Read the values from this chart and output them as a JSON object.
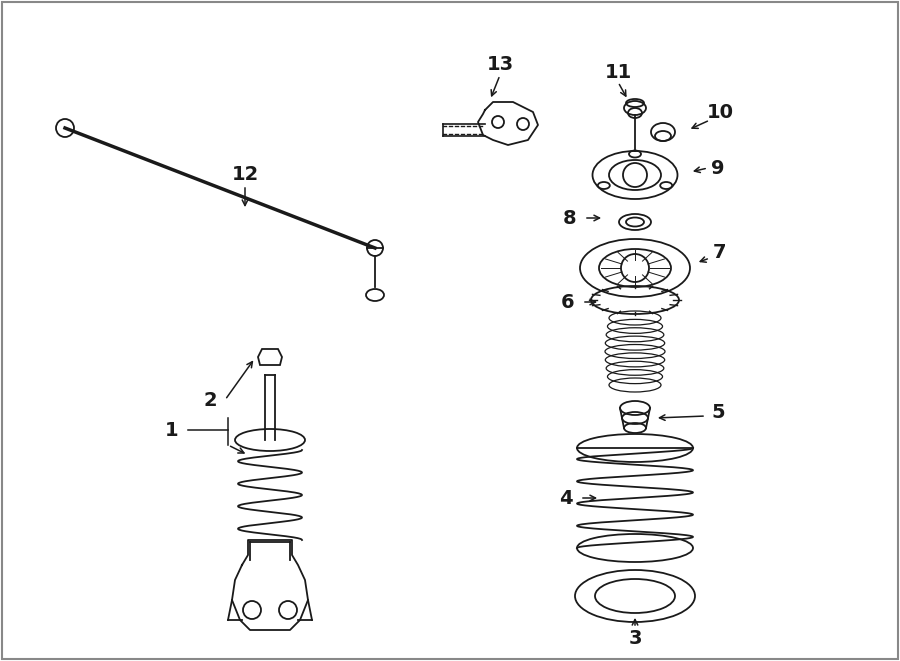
{
  "bg_color": "#ffffff",
  "line_color": "#1a1a1a",
  "fig_width": 9.0,
  "fig_height": 6.61,
  "dpi": 100,
  "border_color": "#cccccc"
}
